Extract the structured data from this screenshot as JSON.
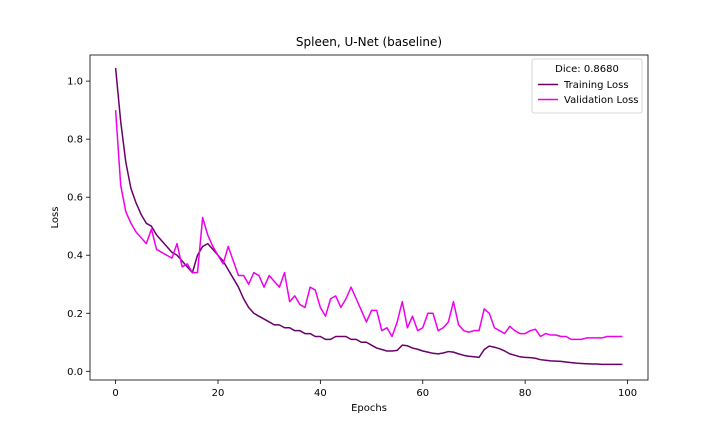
{
  "chart_data": {
    "type": "line",
    "title": "Spleen, U-Net (baseline)",
    "xlabel": "Epochs",
    "ylabel": "Loss",
    "xlim": [
      -5,
      104
    ],
    "ylim": [
      -0.03,
      1.09
    ],
    "xticks": [
      "0",
      "20",
      "40",
      "60",
      "80",
      "100"
    ],
    "yticks": [
      "0.0",
      "0.2",
      "0.4",
      "0.6",
      "0.8",
      "1.0"
    ],
    "legend": {
      "title": "Dice: 0.8680",
      "placement": "top-right"
    },
    "grid": false,
    "x": [
      0,
      1,
      2,
      3,
      4,
      5,
      6,
      7,
      8,
      9,
      10,
      11,
      12,
      13,
      14,
      15,
      16,
      17,
      18,
      19,
      20,
      21,
      22,
      23,
      24,
      25,
      26,
      27,
      28,
      29,
      30,
      31,
      32,
      33,
      34,
      35,
      36,
      37,
      38,
      39,
      40,
      41,
      42,
      43,
      44,
      45,
      46,
      47,
      48,
      49,
      50,
      51,
      52,
      53,
      54,
      55,
      56,
      57,
      58,
      59,
      60,
      61,
      62,
      63,
      64,
      65,
      66,
      67,
      68,
      69,
      70,
      71,
      72,
      73,
      74,
      75,
      76,
      77,
      78,
      79,
      80,
      81,
      82,
      83,
      84,
      85,
      86,
      87,
      88,
      89,
      90,
      91,
      92,
      93,
      94,
      95,
      96,
      97,
      98,
      99
    ],
    "series": [
      {
        "name": "Training Loss",
        "color": "#6a006a",
        "values": [
          1.045,
          0.86,
          0.72,
          0.63,
          0.58,
          0.54,
          0.51,
          0.5,
          0.47,
          0.45,
          0.43,
          0.41,
          0.4,
          0.38,
          0.36,
          0.34,
          0.4,
          0.43,
          0.44,
          0.42,
          0.4,
          0.38,
          0.35,
          0.32,
          0.29,
          0.25,
          0.22,
          0.2,
          0.19,
          0.18,
          0.17,
          0.16,
          0.16,
          0.15,
          0.15,
          0.14,
          0.14,
          0.13,
          0.13,
          0.12,
          0.12,
          0.11,
          0.11,
          0.12,
          0.12,
          0.12,
          0.11,
          0.11,
          0.1,
          0.1,
          0.09,
          0.08,
          0.075,
          0.07,
          0.07,
          0.072,
          0.09,
          0.088,
          0.08,
          0.076,
          0.07,
          0.066,
          0.062,
          0.06,
          0.063,
          0.068,
          0.066,
          0.06,
          0.055,
          0.052,
          0.05,
          0.048,
          0.075,
          0.087,
          0.083,
          0.078,
          0.07,
          0.06,
          0.055,
          0.05,
          0.048,
          0.047,
          0.045,
          0.04,
          0.038,
          0.036,
          0.035,
          0.034,
          0.032,
          0.03,
          0.028,
          0.027,
          0.026,
          0.025,
          0.025,
          0.024,
          0.024,
          0.024,
          0.024,
          0.024
        ]
      },
      {
        "name": "Validation Loss",
        "color": "#ee00ee",
        "values": [
          0.9,
          0.64,
          0.55,
          0.51,
          0.48,
          0.46,
          0.44,
          0.49,
          0.42,
          0.41,
          0.4,
          0.39,
          0.44,
          0.36,
          0.37,
          0.34,
          0.34,
          0.53,
          0.47,
          0.43,
          0.4,
          0.37,
          0.43,
          0.38,
          0.33,
          0.33,
          0.3,
          0.34,
          0.33,
          0.29,
          0.33,
          0.31,
          0.29,
          0.34,
          0.24,
          0.26,
          0.23,
          0.22,
          0.29,
          0.28,
          0.22,
          0.19,
          0.25,
          0.26,
          0.22,
          0.25,
          0.29,
          0.25,
          0.21,
          0.17,
          0.21,
          0.21,
          0.14,
          0.15,
          0.12,
          0.17,
          0.24,
          0.15,
          0.19,
          0.14,
          0.15,
          0.2,
          0.2,
          0.14,
          0.15,
          0.17,
          0.24,
          0.16,
          0.14,
          0.135,
          0.14,
          0.14,
          0.215,
          0.2,
          0.15,
          0.14,
          0.13,
          0.155,
          0.14,
          0.13,
          0.13,
          0.14,
          0.145,
          0.12,
          0.13,
          0.125,
          0.125,
          0.12,
          0.12,
          0.11,
          0.11,
          0.11,
          0.115,
          0.115,
          0.115,
          0.115,
          0.12,
          0.12,
          0.12,
          0.12
        ]
      }
    ]
  }
}
